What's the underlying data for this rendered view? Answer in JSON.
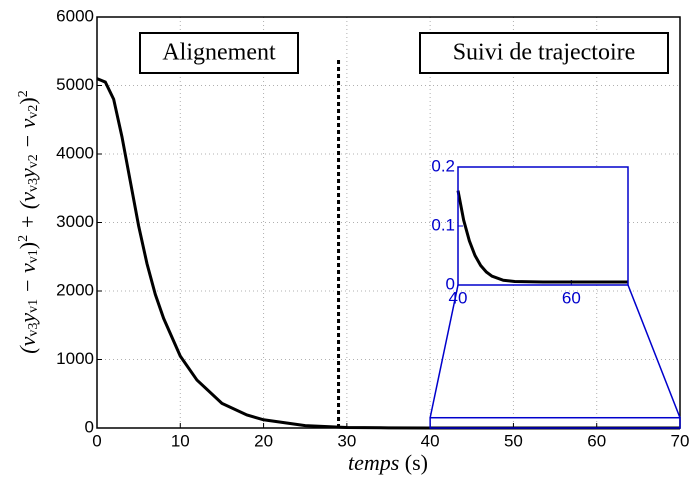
{
  "chart_data": [
    {
      "type": "line",
      "xlabel_parts": [
        {
          "it": "temps"
        },
        {
          "t": " (s)"
        }
      ],
      "ylabel_parts": [
        {
          "t": "(v"
        },
        {
          "sub": "v3"
        },
        {
          "t": "y"
        },
        {
          "sub": "v1"
        },
        {
          "t": " − v"
        },
        {
          "sub": "v1"
        },
        {
          "t": ")"
        },
        {
          "sup": "2"
        },
        {
          "t": " + (v"
        },
        {
          "sub": "v3"
        },
        {
          "t": "y"
        },
        {
          "sub": "v2"
        },
        {
          "t": " − v"
        },
        {
          "sub": "v2"
        },
        {
          "t": ")"
        },
        {
          "sup": "2"
        }
      ],
      "x": [
        0,
        1,
        2,
        3,
        4,
        5,
        6,
        7,
        8,
        10,
        12,
        15,
        18,
        20,
        25,
        30,
        35,
        40,
        50,
        60,
        70
      ],
      "series": [
        {
          "color": "#000000",
          "values": [
            5100,
            5050,
            4800,
            4250,
            3600,
            2950,
            2400,
            1950,
            1600,
            1050,
            700,
            360,
            190,
            120,
            35,
            8,
            2,
            0.16,
            0.005,
            0.005,
            0.005
          ]
        }
      ],
      "xlim": [
        0,
        70
      ],
      "xticks": [
        0,
        10,
        20,
        30,
        40,
        50,
        60,
        70
      ],
      "ylim": [
        0,
        6000
      ],
      "yticks": [
        0,
        1000,
        2000,
        3000,
        4000,
        5000,
        6000
      ],
      "grid": true,
      "annotations": [
        "Alignement",
        "Suivi de trajectoire"
      ],
      "separator": {
        "x": 29,
        "ymax": 5400
      },
      "zoom_box": {
        "xlim": [
          40,
          70
        ],
        "ylim": [
          0,
          150
        ],
        "color": "#0000cc"
      }
    },
    {
      "type": "line",
      "x": [
        40,
        41,
        42,
        43,
        44,
        45,
        46,
        48,
        50,
        55,
        60,
        65,
        70
      ],
      "series": [
        {
          "color": "#000000",
          "values": [
            0.16,
            0.11,
            0.075,
            0.05,
            0.033,
            0.022,
            0.015,
            0.008,
            0.006,
            0.005,
            0.005,
            0.005,
            0.005
          ]
        }
      ],
      "xlim": [
        40,
        70
      ],
      "xticks": [
        40,
        60
      ],
      "ylim": [
        0,
        0.2
      ],
      "yticks": [
        0,
        0.1,
        0.2
      ],
      "axis_color": "#0000cc"
    }
  ]
}
